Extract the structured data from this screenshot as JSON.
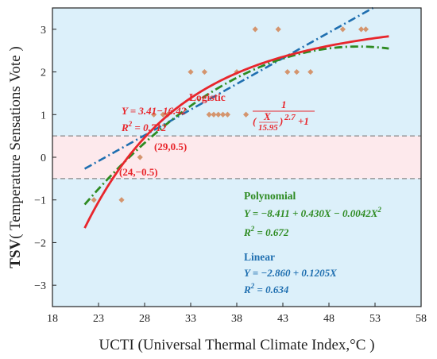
{
  "chart_data": {
    "type": "scatter",
    "xlabel": "UCTI (Universal Thermal Climate Index,°C )",
    "ylabel_bold": "TSV",
    "ylabel_rest": "( Temperature Sensations Vote )",
    "xlim": [
      18,
      58
    ],
    "ylim": [
      -3.5,
      3.5
    ],
    "xticks": [
      "18",
      "23",
      "28",
      "33",
      "38",
      "43",
      "48",
      "53",
      "58"
    ],
    "yticks": [
      "−3",
      "−2",
      "−1",
      "0",
      "1",
      "2",
      "3"
    ],
    "comfort_band": [
      -0.5,
      0.5
    ],
    "points": [
      {
        "x": 22.5,
        "y": -1
      },
      {
        "x": 25.5,
        "y": -1
      },
      {
        "x": 27.5,
        "y": 0
      },
      {
        "x": 29.0,
        "y": 1
      },
      {
        "x": 30.0,
        "y": 1
      },
      {
        "x": 30.5,
        "y": 1
      },
      {
        "x": 33.0,
        "y": 2
      },
      {
        "x": 34.5,
        "y": 2
      },
      {
        "x": 35.0,
        "y": 1
      },
      {
        "x": 35.5,
        "y": 1
      },
      {
        "x": 36.0,
        "y": 1
      },
      {
        "x": 36.5,
        "y": 1
      },
      {
        "x": 37.0,
        "y": 1
      },
      {
        "x": 38.0,
        "y": 2
      },
      {
        "x": 39.0,
        "y": 1
      },
      {
        "x": 40.0,
        "y": 3
      },
      {
        "x": 42.5,
        "y": 3
      },
      {
        "x": 43.5,
        "y": 2
      },
      {
        "x": 44.5,
        "y": 2
      },
      {
        "x": 46.0,
        "y": 2
      },
      {
        "x": 49.5,
        "y": 3
      },
      {
        "x": 51.5,
        "y": 3
      },
      {
        "x": 52.0,
        "y": 3
      }
    ],
    "models": [
      {
        "name": "Logistic",
        "color": "#e8262c",
        "style": "solid",
        "eq_main": "Y = 3.41−16.42",
        "eq_num": "1",
        "eq_den_var": "X",
        "eq_den_const": "15.95",
        "eq_exp": "2.7",
        "eq_tail": "+1",
        "r2_value": " = 0.712"
      },
      {
        "name": "Polynomial",
        "color": "#2e8b22",
        "style": "dashdot",
        "eq": "Y = −8.411 + 0.430X − 0.0042X",
        "eq_sup": "2",
        "r2_value": " = 0.672"
      },
      {
        "name": "Linear",
        "color": "#1f6fb0",
        "style": "dashdot",
        "eq": "Y = −2.860 + 0.1205X",
        "r2_value": " = 0.634"
      }
    ],
    "r2_label": "R",
    "r2_sup": "2",
    "annotations": [
      {
        "label": "(29,0.5)",
        "x": 29,
        "y": 0.5
      },
      {
        "label": "(24,−0.5)",
        "x": 24,
        "y": -0.5
      }
    ],
    "colors": {
      "plot_bg": "#dcf0fa",
      "band": "#fde9ec",
      "points": "#d4956e",
      "annotation": "#e8262c"
    }
  }
}
